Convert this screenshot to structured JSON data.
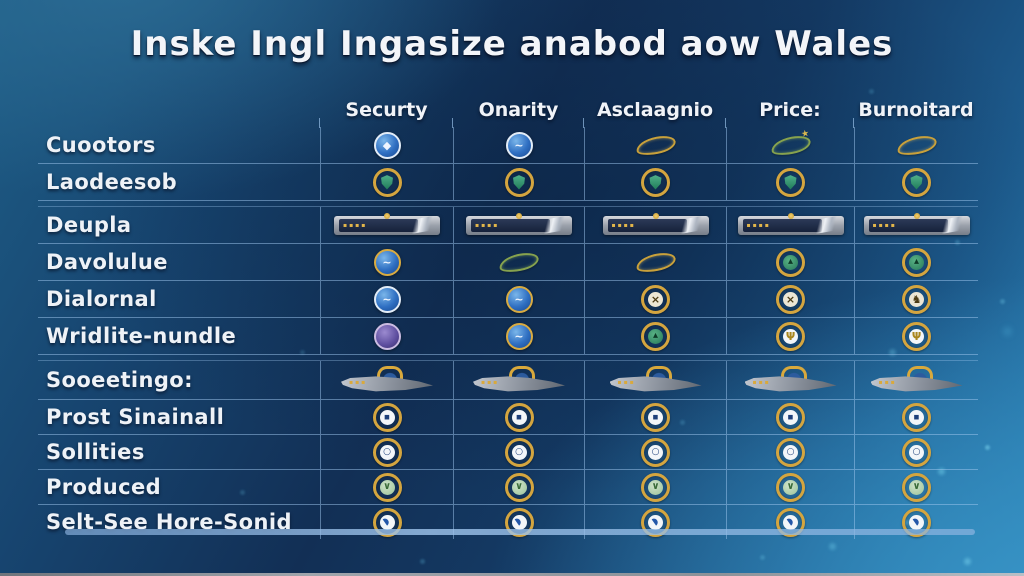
{
  "title": "Inske Ingl Ingasize anabod aow Wales",
  "chart_data": {
    "type": "table",
    "title": "Inske Ingl Ingasize anabod aow Wales",
    "columns": [
      "Securty",
      "Onarity",
      "Asclaagnio",
      "Price:",
      "Burnoitard"
    ],
    "rows": [
      {
        "label": "Cuootors",
        "cells": [
          "blue-shield-badge",
          "blue-globe-badge",
          "gold-wisp-badge",
          "green-sparkle-wisp-badge",
          "gold-wisp-badge"
        ]
      },
      {
        "label": "Laodeesob",
        "cells": [
          "gold-shield-badge",
          "gold-shield-badge",
          "gold-shield-badge",
          "gold-shield-badge",
          "gold-shield-badge"
        ]
      },
      {
        "label": "Deupla",
        "cells": [
          "silver-banner-badge",
          "silver-banner-badge",
          "silver-banner-badge",
          "silver-banner-badge",
          "silver-banner-badge"
        ]
      },
      {
        "label": "Davolulue",
        "cells": [
          "blue-globe-gold-badge",
          "green-wisp-badge",
          "gold-wisp-badge",
          "gold-ring-green-badge",
          "gold-ring-green-badge"
        ]
      },
      {
        "label": "Dialornal",
        "cells": [
          "blue-globe-badge",
          "blue-globe-gold-badge",
          "gold-ring-cross-badge",
          "gold-ring-cross-badge",
          "gold-ring-bird-badge"
        ]
      },
      {
        "label": "Wridlite-nundle",
        "cells": [
          "purple-orb-badge",
          "blue-globe-gold-badge",
          "gold-ring-green-badge",
          "gold-ring-wheat-badge",
          "gold-ring-wheat-badge"
        ]
      },
      {
        "label": "Sooeetingo:",
        "cells": [
          "silver-shark-badge",
          "silver-shark-badge",
          "silver-shark-badge",
          "silver-shark-badge",
          "silver-shark-badge"
        ]
      },
      {
        "label": "Prost Sinainall",
        "cells": [
          "white-ring-badge",
          "white-ring-badge",
          "white-ring-badge",
          "white-ring-badge",
          "white-ring-badge"
        ]
      },
      {
        "label": "Sollities",
        "cells": [
          "white-ring-o-badge",
          "white-ring-o-badge",
          "white-ring-o-badge",
          "white-ring-o-badge",
          "white-ring-o-badge"
        ]
      },
      {
        "label": "Produced",
        "cells": [
          "gold-ring-v-badge",
          "gold-ring-v-badge",
          "gold-ring-v-badge",
          "gold-ring-v-badge",
          "gold-ring-v-badge"
        ]
      },
      {
        "label": "Selt-See Hore-Sonid",
        "cells": [
          "blue-swoosh-ring-badge",
          "blue-swoosh-ring-badge",
          "blue-swoosh-ring-badge",
          "blue-swoosh-ring-badge",
          "blue-swoosh-ring-badge"
        ]
      }
    ],
    "layout": {
      "grid": "on",
      "legend": "none"
    }
  },
  "colors": {
    "accent_gold": "#d4a53f",
    "grid_line_blue": "#9fc3e4",
    "bg_dark_navy": "#14365f",
    "bg_bright_blue": "#2b81b5",
    "badge_silver": "#9aa0a8",
    "title_text": "#f3f5f9"
  }
}
